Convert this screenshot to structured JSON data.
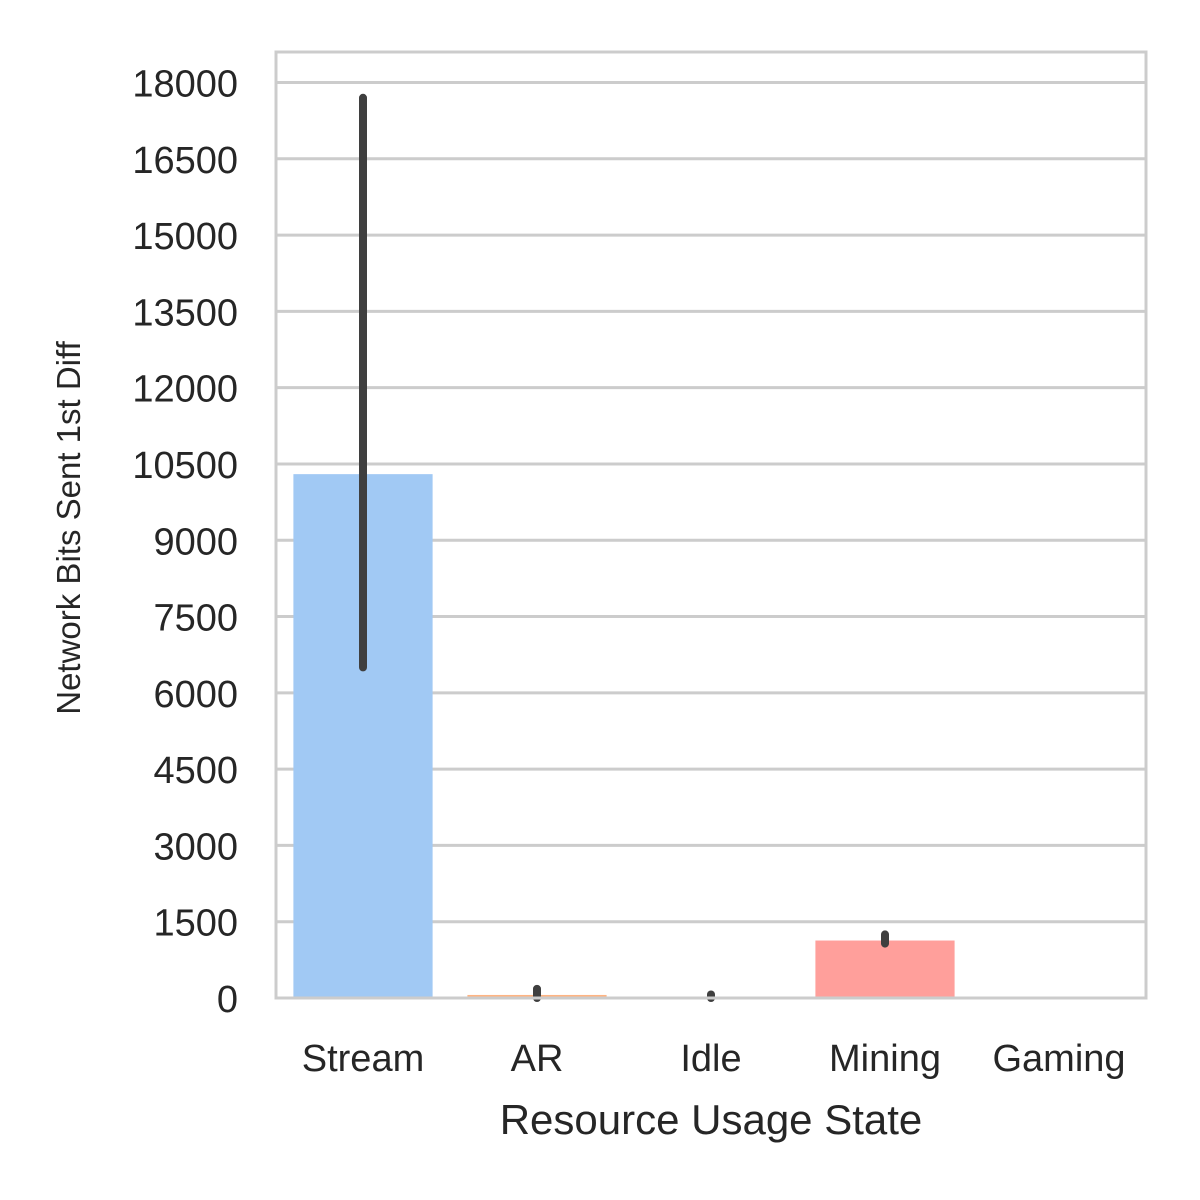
{
  "chart_data": {
    "type": "bar",
    "categories": [
      "Stream",
      "AR",
      "Idle",
      "Mining",
      "Gaming"
    ],
    "values": [
      10300,
      60,
      5,
      1130,
      0
    ],
    "error_bars": [
      {
        "low": 6500,
        "high": 17700
      },
      {
        "low": 0,
        "high": 180
      },
      {
        "low": 0,
        "high": 70
      },
      {
        "low": 1070,
        "high": 1250
      },
      {
        "low": 0,
        "high": 0
      }
    ],
    "colors": [
      "#a1c9f4",
      "#ffb482",
      "#8de5a1",
      "#ff9f9b",
      "#d0bbff"
    ],
    "error_color": "#3f3f3f",
    "xlabel": "Resource Usage State",
    "ylabel": "Network Bits Sent 1st Diff",
    "ylim": [
      0,
      18600
    ],
    "yticks": [
      0,
      1500,
      3000,
      4500,
      6000,
      7500,
      9000,
      10500,
      12000,
      13500,
      15000,
      16500,
      18000
    ],
    "grid": "horizontal",
    "legend": "none"
  }
}
